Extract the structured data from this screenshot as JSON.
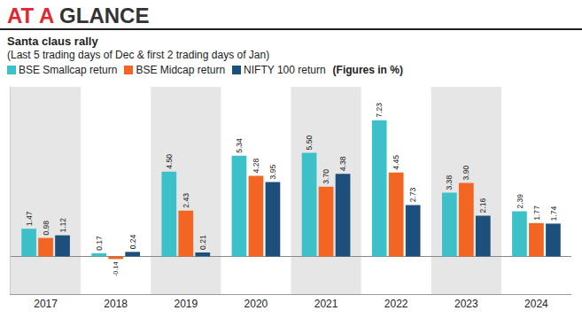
{
  "header": "AT A GLANCE",
  "chart_data": {
    "type": "bar",
    "title": "Santa claus rally",
    "subtitle": "(Last 5 trading days of Dec & first 2 trading days of Jan)",
    "annotations": [
      "(Figures in %)"
    ],
    "categories": [
      "2017",
      "2018",
      "2019",
      "2020",
      "2021",
      "2022",
      "2023",
      "2024"
    ],
    "series": [
      {
        "name": "BSE Smallcap return",
        "color": "#3cc1c9",
        "values": [
          1.47,
          0.17,
          4.5,
          5.34,
          5.5,
          7.23,
          3.38,
          2.39
        ],
        "value_labels": [
          "1.47",
          "0.17",
          "4.50",
          "5.34",
          "5.50",
          "7.23",
          "3.38",
          "2.39"
        ]
      },
      {
        "name": "BSE Midcap return",
        "color": "#f26522",
        "values": [
          0.98,
          -0.14,
          2.43,
          4.28,
          3.7,
          4.45,
          3.9,
          1.77
        ],
        "value_labels": [
          "0.98",
          "-0.14",
          "2.43",
          "4.28",
          "3.70",
          "4.45",
          "3.90",
          "1.77"
        ]
      },
      {
        "name": "NIFTY 100 return",
        "color": "#1c4f7c",
        "values": [
          1.12,
          0.24,
          0.21,
          3.95,
          4.38,
          2.73,
          2.16,
          1.74
        ],
        "value_labels": [
          "1.12",
          "0.24",
          "0.21",
          "3.95",
          "4.38",
          "2.73",
          "2.16",
          "1.74"
        ]
      }
    ],
    "ylim": [
      -2,
      9
    ],
    "yticks": [
      0
    ],
    "data_labels": true,
    "tick_labels": "x",
    "grid": false
  }
}
